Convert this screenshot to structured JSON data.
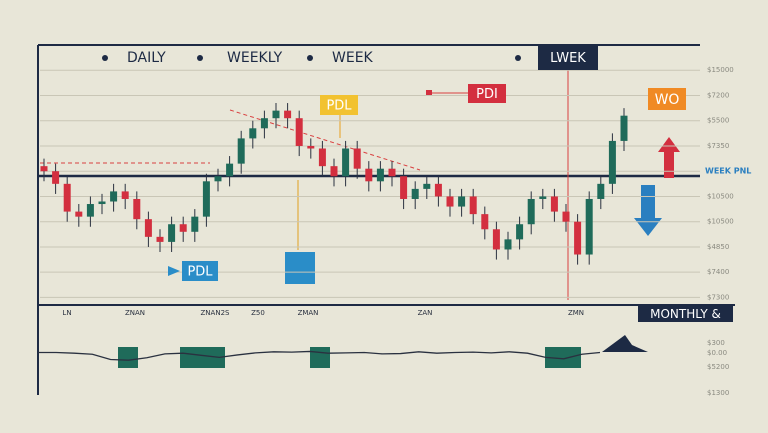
{
  "chart_data": {
    "type": "candlestick",
    "header_labels": [
      "DAILY",
      "WEEKLY",
      "WEEK"
    ],
    "annotations": [
      "LWEK",
      "PDL",
      "PDI",
      "WO",
      "PDL",
      "MONTHLY &"
    ],
    "x_tick_labels": [
      "LN",
      "ZNAN",
      "ZNAN2S",
      "Z50",
      "ZMAN",
      "ZAN",
      "ZMN"
    ],
    "up_color": "#1f6b5a",
    "down_color": "#d32f3f",
    "ylim": [
      -0.3,
      10
    ],
    "yticks": [
      {
        "value": 0,
        "label": "$7300"
      },
      {
        "value": 1,
        "label": "$7400"
      },
      {
        "value": 2,
        "label": "$4850"
      },
      {
        "value": 3,
        "label": "$10500"
      },
      {
        "value": 4,
        "label": "$10500"
      },
      {
        "value": 5,
        "label": "WEEK PNL"
      },
      {
        "value": 6,
        "label": "$7350"
      },
      {
        "value": 7,
        "label": "$5500"
      },
      {
        "value": 8,
        "label": "$7200"
      },
      {
        "value": 9,
        "label": "$15000"
      }
    ],
    "grid": true,
    "open": [
      5.2,
      5.0,
      4.5,
      3.4,
      3.2,
      3.7,
      3.8,
      4.2,
      3.9,
      3.1,
      2.4,
      2.2,
      2.9,
      2.6,
      3.2,
      4.6,
      4.8,
      5.3,
      6.3,
      6.7,
      7.1,
      7.4,
      7.1,
      6.0,
      5.9,
      5.2,
      4.8,
      5.9,
      5.1,
      4.6,
      5.1,
      4.8,
      3.9,
      4.3,
      4.5,
      4.0,
      3.6,
      4.0,
      3.3,
      2.7,
      1.9,
      2.3,
      2.9,
      3.9,
      4.0,
      3.4,
      3.0,
      1.7,
      3.9,
      4.5,
      6.2
    ],
    "high": [
      5.5,
      5.3,
      4.8,
      3.7,
      4.0,
      4.1,
      4.5,
      4.5,
      4.2,
      3.4,
      2.7,
      3.2,
      3.2,
      3.5,
      4.9,
      5.1,
      5.6,
      6.6,
      7.0,
      7.4,
      7.7,
      7.7,
      7.4,
      6.3,
      6.2,
      5.5,
      6.2,
      6.2,
      5.4,
      5.4,
      5.4,
      5.1,
      4.6,
      4.8,
      4.8,
      4.3,
      4.3,
      4.3,
      3.6,
      3.0,
      2.6,
      3.2,
      4.2,
      4.3,
      4.3,
      3.7,
      3.3,
      4.2,
      4.8,
      6.5,
      7.5
    ],
    "low": [
      4.6,
      4.1,
      3.0,
      2.8,
      2.8,
      3.3,
      3.4,
      3.5,
      2.7,
      2.0,
      1.8,
      1.8,
      2.2,
      2.2,
      2.8,
      4.2,
      4.4,
      4.9,
      5.9,
      6.3,
      6.7,
      6.7,
      5.6,
      5.5,
      4.8,
      4.4,
      4.4,
      4.7,
      4.2,
      4.2,
      4.4,
      3.5,
      3.5,
      3.9,
      3.6,
      3.2,
      3.2,
      2.9,
      2.3,
      1.5,
      1.5,
      1.9,
      2.5,
      3.5,
      3.0,
      2.6,
      1.3,
      1.3,
      3.5,
      4.1,
      5.8
    ],
    "close": [
      5.0,
      4.5,
      3.4,
      3.2,
      3.7,
      3.8,
      4.2,
      3.9,
      3.1,
      2.4,
      2.2,
      2.9,
      2.6,
      3.2,
      4.6,
      4.8,
      5.3,
      6.3,
      6.7,
      7.1,
      7.4,
      7.1,
      6.0,
      5.9,
      5.2,
      4.8,
      5.9,
      5.1,
      4.6,
      5.1,
      4.8,
      3.9,
      4.3,
      4.5,
      4.0,
      3.6,
      4.0,
      3.3,
      2.7,
      1.9,
      2.3,
      2.9,
      3.9,
      4.0,
      3.4,
      3.0,
      1.7,
      3.9,
      4.5,
      6.2,
      7.2
    ],
    "indicator": {
      "ylim": [
        0,
        10
      ],
      "color": "#2a3140",
      "values": [
        5,
        5,
        4.8,
        4.5,
        3,
        2.8,
        3.5,
        4.6,
        4.8,
        4.2,
        3.6,
        4.3,
        4.9,
        5.2,
        5.1,
        5.3,
        4.8,
        4.9,
        5,
        4.6,
        4.7,
        5.2,
        4.8,
        5,
        5.1,
        4.9,
        5.2,
        4.8,
        3.6,
        3.2,
        4.5,
        5
      ],
      "labels": [
        "$300",
        "$0.00",
        "$5200",
        "$1300"
      ]
    }
  }
}
